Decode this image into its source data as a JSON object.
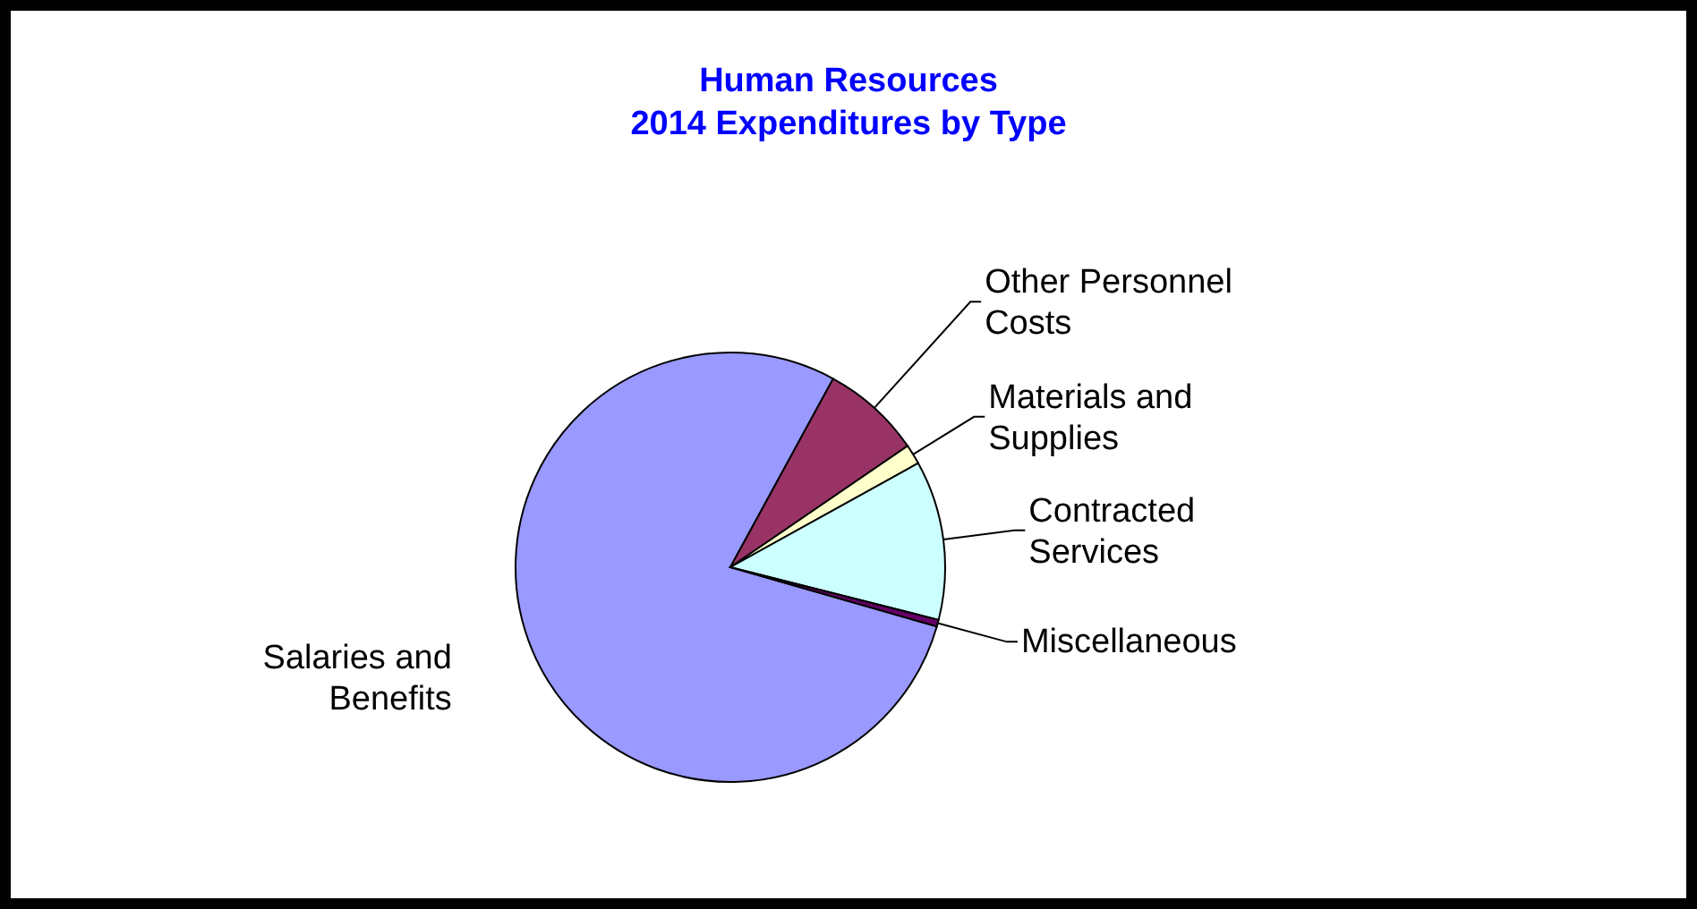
{
  "chart_data": {
    "type": "pie",
    "title": "Human Resources",
    "subtitle": "2014 Expenditures by Type",
    "categories": [
      "Salaries and Benefits",
      "Other Personnel Costs",
      "Materials and Supplies",
      "Contracted Services",
      "Miscellaneous"
    ],
    "values": [
      78.5,
      7.5,
      1.5,
      12,
      0.5
    ],
    "colors": [
      "#9999ff",
      "#993366",
      "#ffffcc",
      "#ccffff",
      "#660066"
    ],
    "legend": false
  }
}
